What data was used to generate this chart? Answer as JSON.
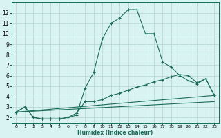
{
  "xlabel": "Humidex (Indice chaleur)",
  "background_color": "#d9f2f2",
  "grid_color": "#b8d8d8",
  "line_color": "#1a6b5a",
  "xlim": [
    -0.5,
    23.5
  ],
  "ylim": [
    1.5,
    13.0
  ],
  "yticks": [
    2,
    3,
    4,
    5,
    6,
    7,
    8,
    9,
    10,
    11,
    12
  ],
  "xticks": [
    0,
    1,
    2,
    3,
    4,
    5,
    6,
    7,
    8,
    9,
    10,
    11,
    12,
    13,
    14,
    15,
    16,
    17,
    18,
    19,
    20,
    21,
    22,
    23
  ],
  "curve_main_x": [
    0,
    1,
    2,
    3,
    4,
    5,
    6,
    7,
    8,
    9,
    10,
    11,
    12,
    13,
    14,
    15,
    16,
    17,
    18,
    19,
    20,
    21,
    22,
    23
  ],
  "curve_main_y": [
    2.5,
    3.0,
    2.0,
    1.85,
    1.85,
    1.85,
    2.0,
    2.2,
    4.8,
    6.3,
    9.5,
    11.0,
    11.5,
    12.3,
    12.3,
    10.0,
    10.0,
    7.3,
    6.8,
    6.0,
    5.5,
    5.2,
    5.7,
    4.1
  ],
  "curve_mid_x": [
    0,
    1,
    2,
    3,
    4,
    5,
    6,
    7,
    8,
    9,
    10,
    11,
    12,
    13,
    14,
    15,
    16,
    17,
    18,
    19,
    20,
    21,
    22,
    23
  ],
  "curve_mid_y": [
    2.5,
    3.0,
    2.0,
    1.85,
    1.85,
    1.85,
    2.0,
    2.4,
    3.5,
    3.5,
    3.7,
    4.1,
    4.3,
    4.6,
    4.9,
    5.1,
    5.4,
    5.6,
    5.9,
    6.1,
    6.0,
    5.3,
    5.7,
    4.1
  ],
  "curve_line1_x": [
    0,
    23
  ],
  "curve_line1_y": [
    2.5,
    4.1
  ],
  "curve_line2_x": [
    0,
    23
  ],
  "curve_line2_y": [
    2.5,
    3.5
  ]
}
